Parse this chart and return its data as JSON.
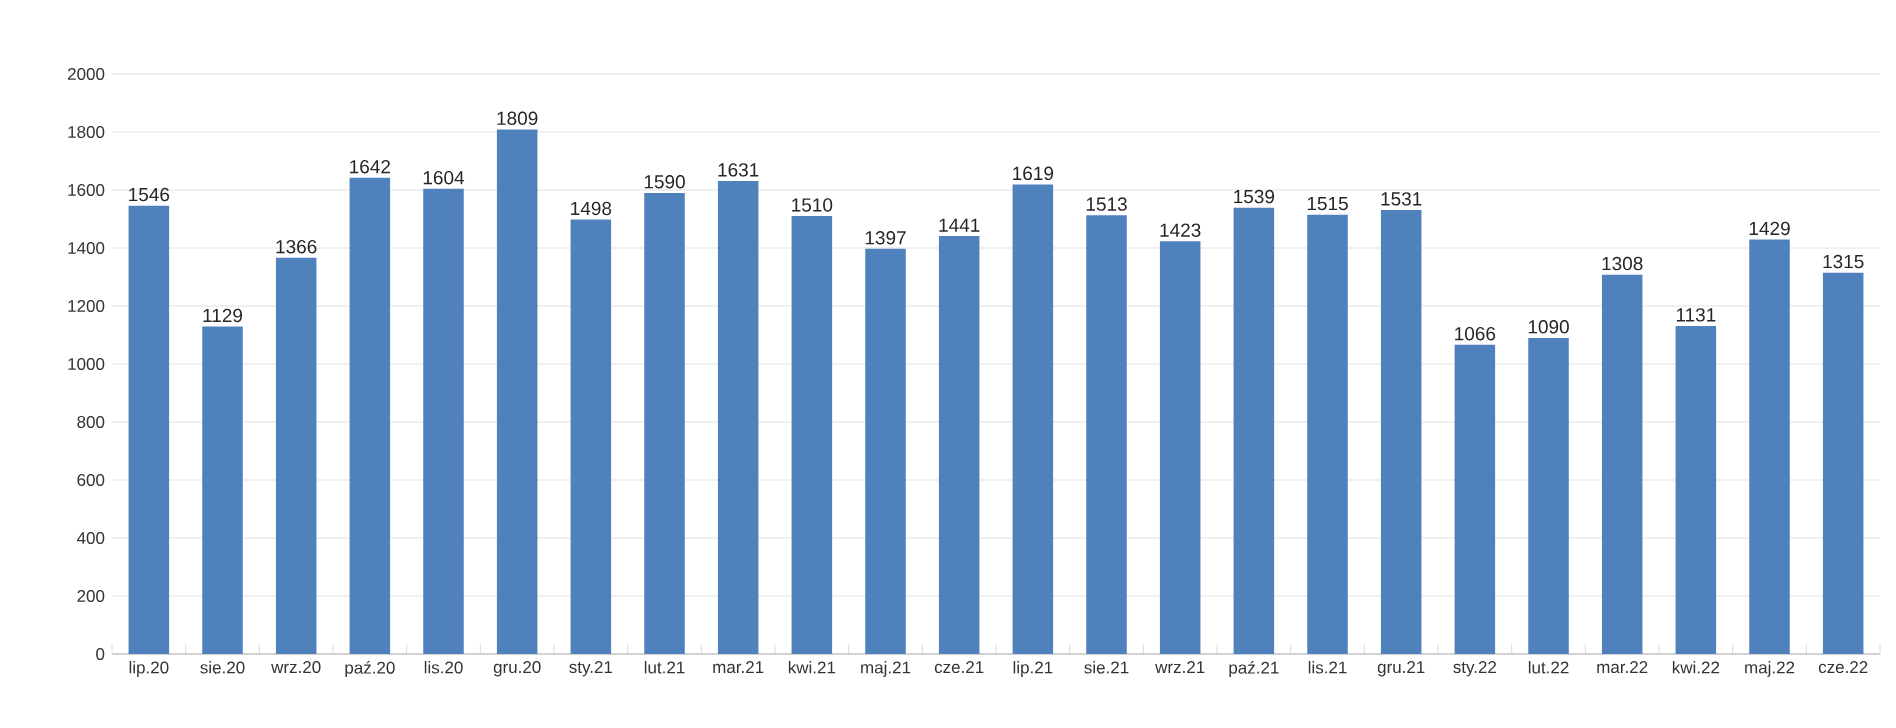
{
  "chart_data": {
    "type": "bar",
    "categories": [
      "lip.20",
      "sie.20",
      "wrz.20",
      "paź.20",
      "lis.20",
      "gru.20",
      "sty.21",
      "lut.21",
      "mar.21",
      "kwi.21",
      "maj.21",
      "cze.21",
      "lip.21",
      "sie.21",
      "wrz.21",
      "paź.21",
      "lis.21",
      "gru.21",
      "sty.22",
      "lut.22",
      "mar.22",
      "kwi.22",
      "maj.22",
      "cze.22"
    ],
    "values": [
      1546,
      1129,
      1366,
      1642,
      1604,
      1809,
      1498,
      1590,
      1631,
      1510,
      1397,
      1441,
      1619,
      1513,
      1423,
      1539,
      1515,
      1531,
      1066,
      1090,
      1308,
      1131,
      1429,
      1315
    ],
    "color": "#4f81bd",
    "ylim": [
      0,
      2000
    ],
    "yticks": [
      0,
      200,
      400,
      600,
      800,
      1000,
      1200,
      1400,
      1600,
      1800,
      2000
    ],
    "grid": "y",
    "data_labels": true
  }
}
